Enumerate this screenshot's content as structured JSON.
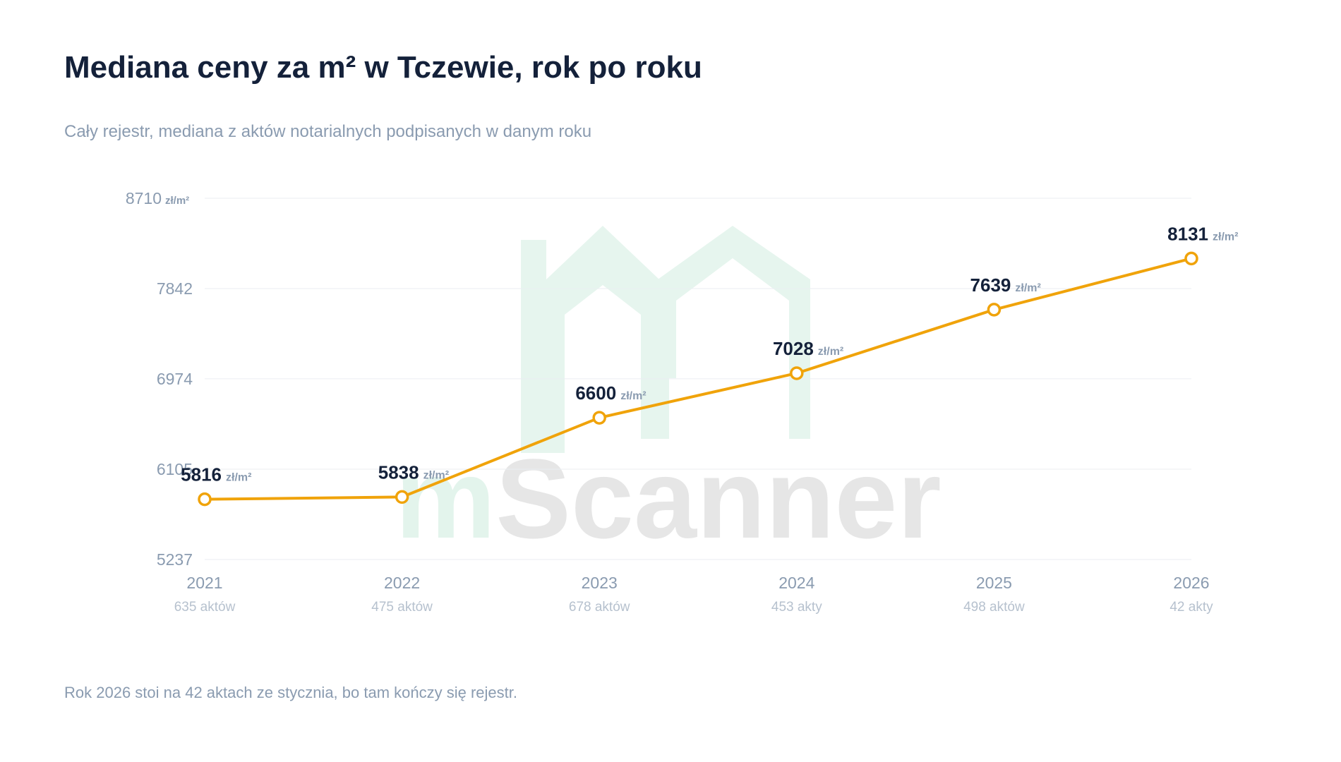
{
  "chart_data": {
    "type": "line",
    "title": "Mediana ceny za m² w Tczewie, rok po roku",
    "subtitle": "Cały rejestr, mediana z aktów notarialnych podpisanych w danym roku",
    "unit": "zł/m²",
    "categories": [
      "2021",
      "2022",
      "2023",
      "2024",
      "2025",
      "2026"
    ],
    "category_notes": [
      "635 aktów",
      "475 aktów",
      "678 aktów",
      "453 akty",
      "498 aktów",
      "42 akty"
    ],
    "series": [
      {
        "name": "Mediana ceny",
        "color": "#f0a30a",
        "values": [
          5816,
          5838,
          6600,
          7028,
          7639,
          8131
        ]
      }
    ],
    "ylim": [
      5237,
      8710
    ],
    "yticks": [
      5237,
      6105,
      6974,
      7842,
      8710
    ],
    "grid": true,
    "watermark": [
      "m",
      "Scanner"
    ],
    "footnote": "Rok 2026 stoi na 42 aktach ze stycznia, bo tam kończy się rejestr."
  }
}
